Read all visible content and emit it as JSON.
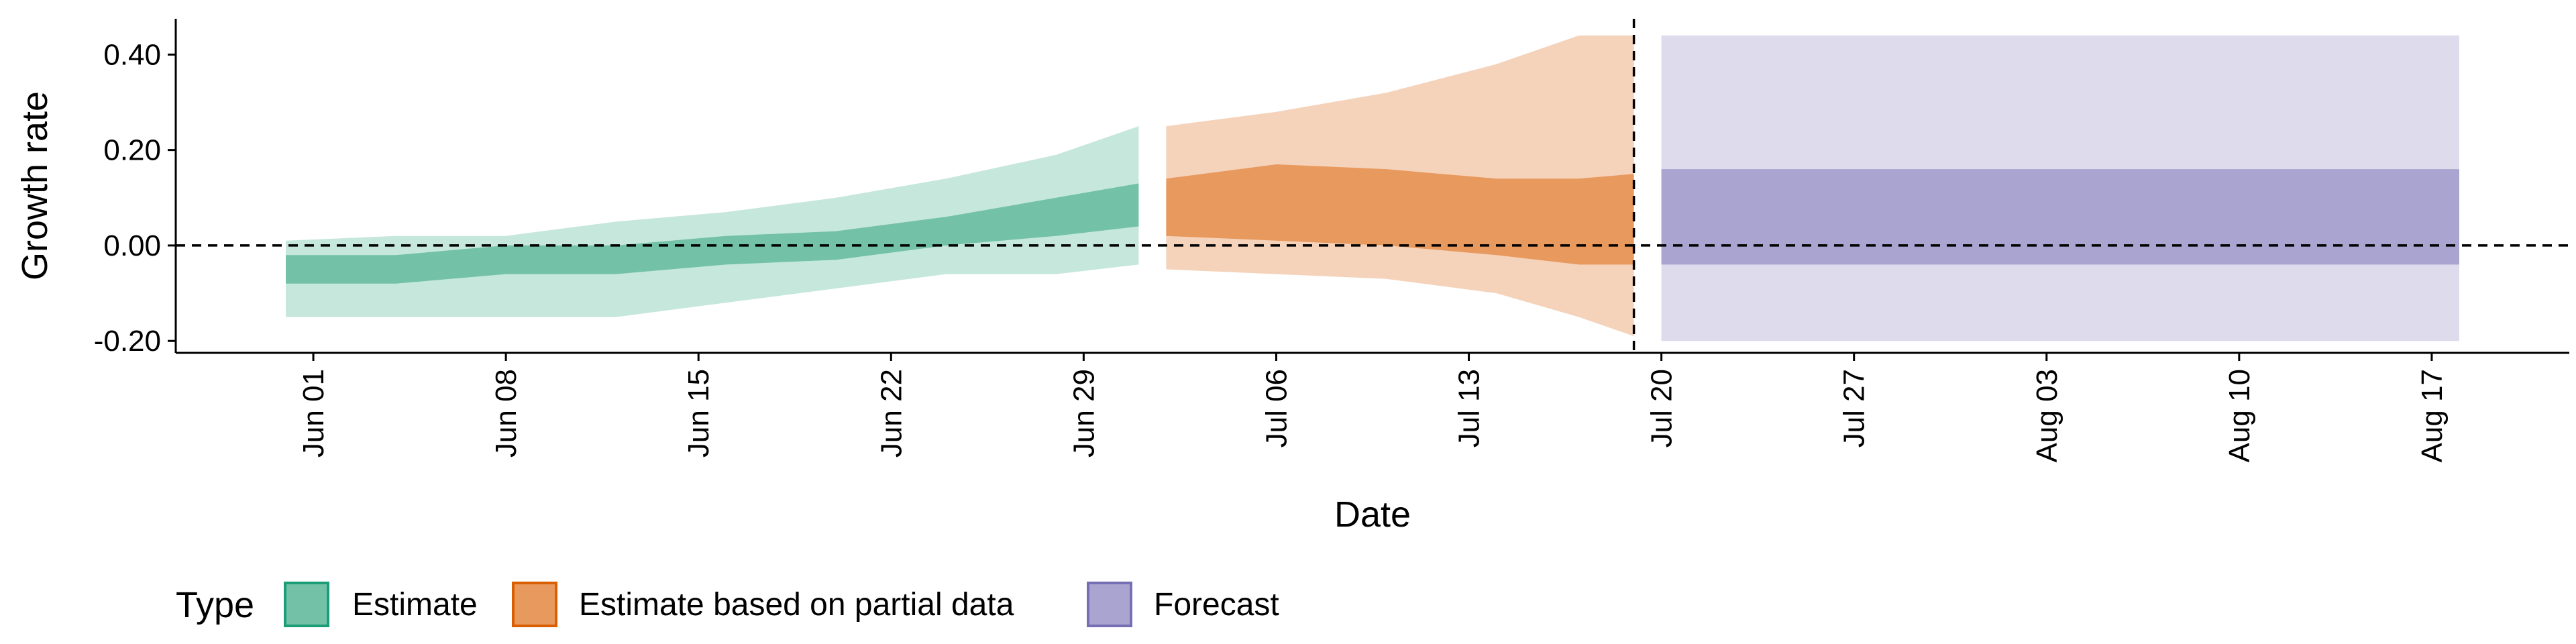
{
  "chart_data": {
    "type": "area",
    "xlabel": "Date",
    "ylabel": "Growth rate",
    "xlim": [
      "2020-05-27",
      "2020-08-22"
    ],
    "ylim": [
      -0.225,
      0.475
    ],
    "x_ticks": [
      "2020-06-01",
      "2020-06-08",
      "2020-06-15",
      "2020-06-22",
      "2020-06-29",
      "2020-07-06",
      "2020-07-13",
      "2020-07-20",
      "2020-07-27",
      "2020-08-03",
      "2020-08-10",
      "2020-08-17"
    ],
    "x_tick_labels": [
      "Jun 01",
      "Jun 08",
      "Jun 15",
      "Jun 22",
      "Jun 29",
      "Jul 06",
      "Jul 13",
      "Jul 20",
      "Jul 27",
      "Aug 03",
      "Aug 10",
      "Aug 17"
    ],
    "y_ticks": [
      -0.2,
      0.0,
      0.2,
      0.4
    ],
    "y_tick_labels": [
      "-0.20",
      "0.00",
      "0.20",
      "0.40"
    ],
    "reference_lines": {
      "horizontal_y": 0.0,
      "vertical_x": "2020-07-19"
    },
    "grid": false,
    "legend": {
      "title": "Type",
      "position": "bottom-left",
      "items": [
        {
          "label": "Estimate",
          "fill": "#73c2a8",
          "border": "#1b9e77"
        },
        {
          "label": "Estimate based on partial data",
          "fill": "#e8995e",
          "border": "#d95f02"
        },
        {
          "label": "Forecast",
          "fill": "#a9a5d0",
          "border": "#7570b3"
        }
      ]
    },
    "series": [
      {
        "name": "Estimate",
        "colors": {
          "inner": "#73c2a8",
          "outer": "#c6e7dc"
        },
        "points": [
          {
            "x": "2020-05-31",
            "lo90": -0.15,
            "lo50": -0.08,
            "hi50": -0.02,
            "hi90": 0.01
          },
          {
            "x": "2020-06-04",
            "lo90": -0.15,
            "lo50": -0.08,
            "hi50": -0.02,
            "hi90": 0.02
          },
          {
            "x": "2020-06-08",
            "lo90": -0.15,
            "lo50": -0.06,
            "hi50": 0.0,
            "hi90": 0.02
          },
          {
            "x": "2020-06-12",
            "lo90": -0.15,
            "lo50": -0.06,
            "hi50": 0.0,
            "hi90": 0.05
          },
          {
            "x": "2020-06-16",
            "lo90": -0.12,
            "lo50": -0.04,
            "hi50": 0.02,
            "hi90": 0.07
          },
          {
            "x": "2020-06-20",
            "lo90": -0.09,
            "lo50": -0.03,
            "hi50": 0.03,
            "hi90": 0.1
          },
          {
            "x": "2020-06-24",
            "lo90": -0.06,
            "lo50": 0.0,
            "hi50": 0.06,
            "hi90": 0.14
          },
          {
            "x": "2020-06-28",
            "lo90": -0.06,
            "lo50": 0.02,
            "hi50": 0.1,
            "hi90": 0.19
          },
          {
            "x": "2020-07-01",
            "lo90": -0.04,
            "lo50": 0.04,
            "hi50": 0.13,
            "hi90": 0.25
          }
        ]
      },
      {
        "name": "Estimate based on partial data",
        "colors": {
          "inner": "#e8995e",
          "outer": "#f5d3bb"
        },
        "points": [
          {
            "x": "2020-07-02",
            "lo90": -0.05,
            "lo50": 0.02,
            "hi50": 0.14,
            "hi90": 0.25
          },
          {
            "x": "2020-07-06",
            "lo90": -0.06,
            "lo50": 0.01,
            "hi50": 0.17,
            "hi90": 0.28
          },
          {
            "x": "2020-07-10",
            "lo90": -0.07,
            "lo50": 0.0,
            "hi50": 0.16,
            "hi90": 0.32
          },
          {
            "x": "2020-07-14",
            "lo90": -0.1,
            "lo50": -0.02,
            "hi50": 0.14,
            "hi90": 0.38
          },
          {
            "x": "2020-07-17",
            "lo90": -0.15,
            "lo50": -0.04,
            "hi50": 0.14,
            "hi90": 0.44
          },
          {
            "x": "2020-07-19",
            "lo90": -0.19,
            "lo50": -0.04,
            "hi50": 0.15,
            "hi90": 0.44
          }
        ]
      },
      {
        "name": "Forecast",
        "colors": {
          "inner": "#a9a5d0",
          "outer": "#dddbec"
        },
        "points": [
          {
            "x": "2020-07-20",
            "lo90": -0.2,
            "lo50": -0.04,
            "hi50": 0.16,
            "hi90": 0.44
          },
          {
            "x": "2020-08-18",
            "lo90": -0.2,
            "lo50": -0.04,
            "hi50": 0.16,
            "hi90": 0.44
          }
        ]
      }
    ]
  }
}
